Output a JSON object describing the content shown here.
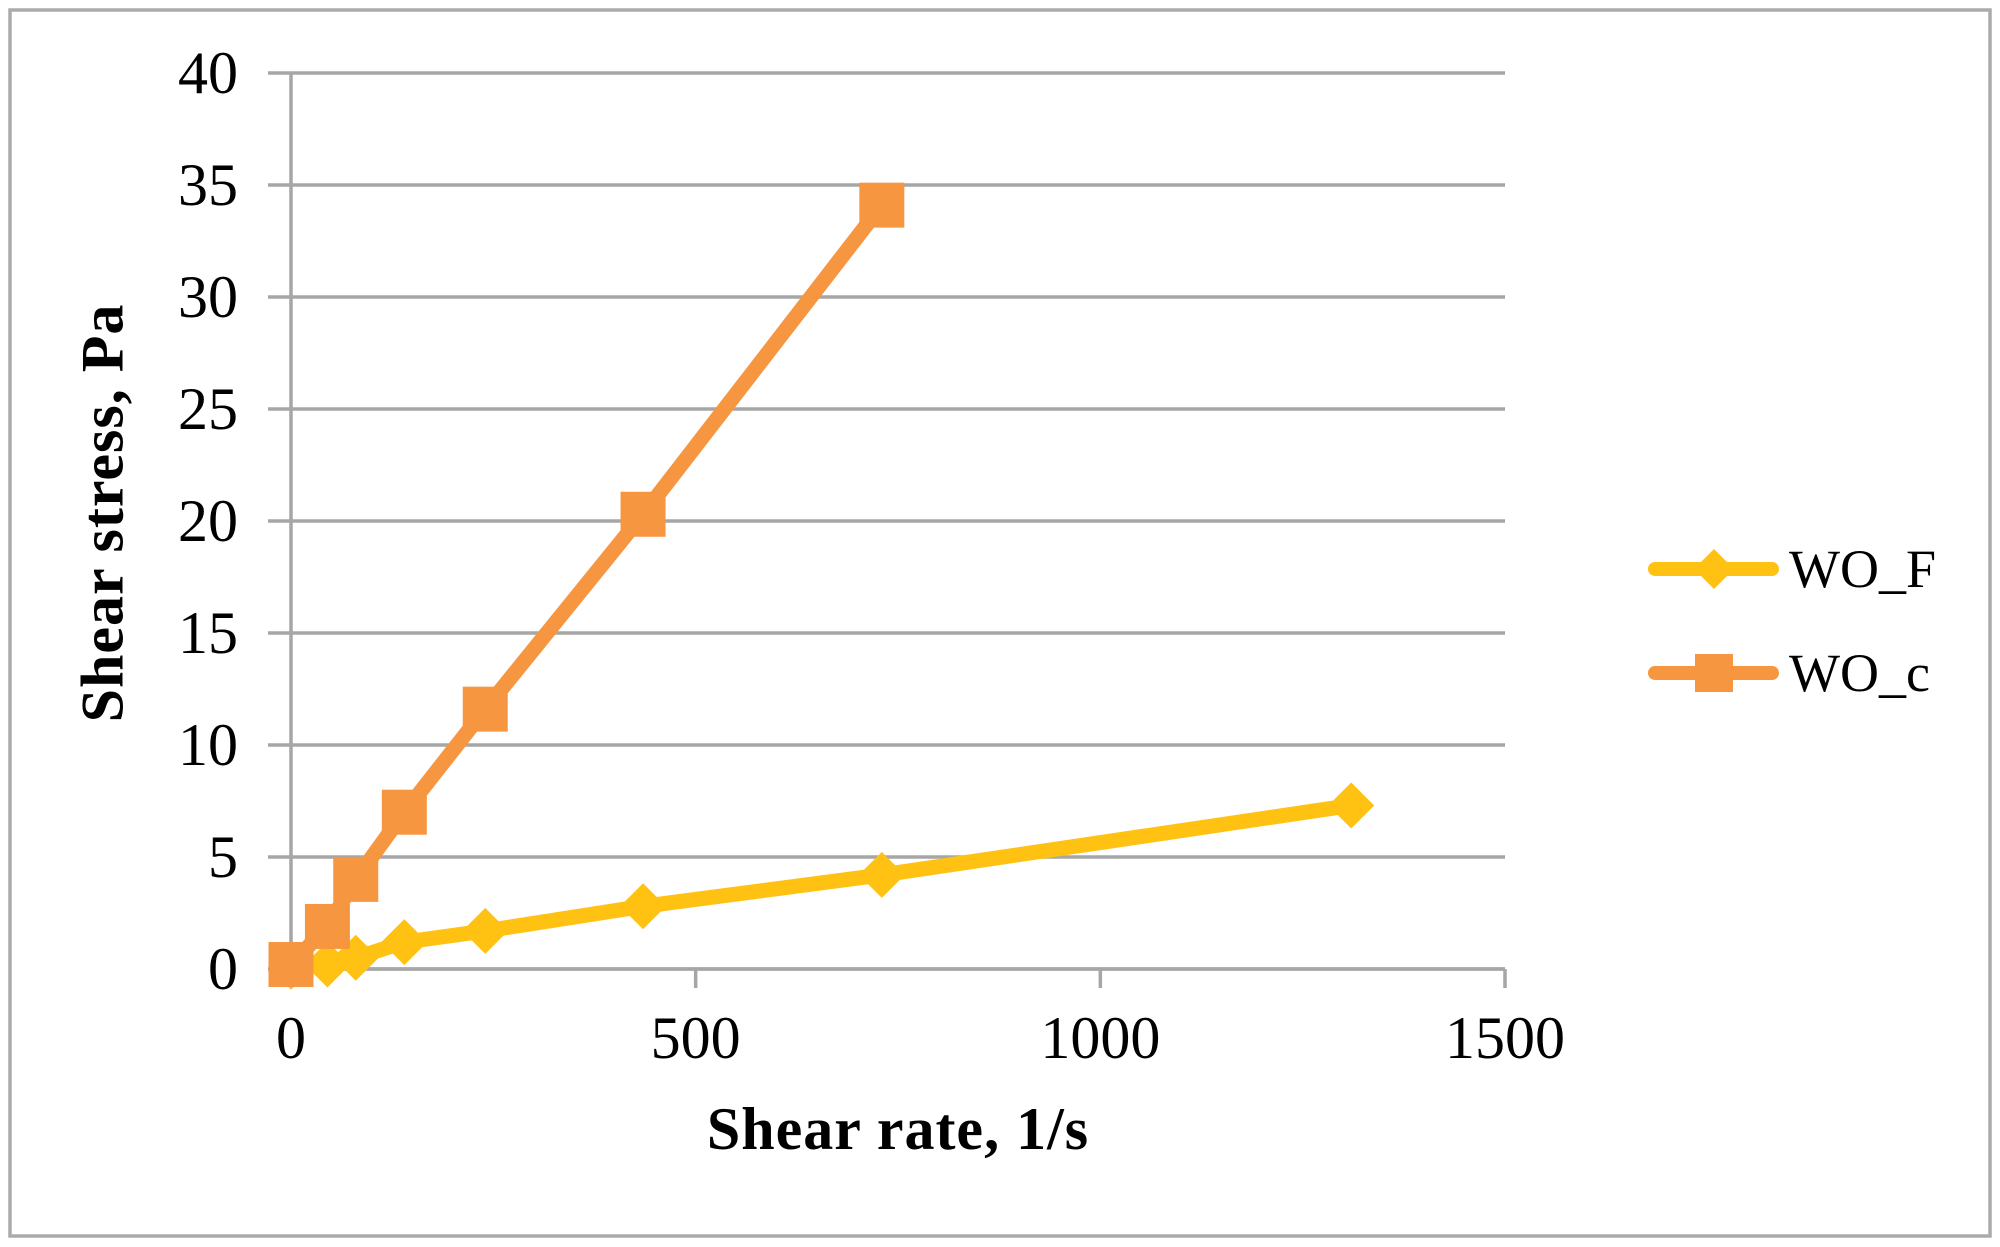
{
  "chart_data": {
    "type": "line",
    "title": "",
    "xlabel": "Shear rate, 1/s",
    "ylabel": "Shear stress, Pa",
    "xlim": [
      0,
      1500
    ],
    "ylim": [
      0,
      40
    ],
    "x_ticks": [
      0,
      500,
      1000,
      1500
    ],
    "y_ticks": [
      0,
      5,
      10,
      15,
      20,
      25,
      30,
      35,
      40
    ],
    "grid": "horizontal gridlines on",
    "legend_position": "right",
    "series": [
      {
        "name": "WO_F",
        "marker": "diamond",
        "color": "#FFC213",
        "points": [
          [
            0,
            0.1
          ],
          [
            45,
            0.2
          ],
          [
            80,
            0.5
          ],
          [
            140,
            1.2
          ],
          [
            240,
            1.7
          ],
          [
            435,
            2.8
          ],
          [
            730,
            4.2
          ],
          [
            1310,
            7.3
          ]
        ]
      },
      {
        "name": "WO_c",
        "marker": "square",
        "color": "#F79640",
        "points": [
          [
            0,
            0.2
          ],
          [
            45,
            1.9
          ],
          [
            80,
            4.0
          ],
          [
            140,
            7.0
          ],
          [
            240,
            11.6
          ],
          [
            435,
            20.3
          ],
          [
            730,
            34.1
          ]
        ]
      }
    ],
    "styles": {
      "grid_color": "#A6A6A6",
      "axis_color": "#A6A6A6",
      "text_color": "#000000",
      "background": "#FFFFFF",
      "figure_border_color": "#ABABAB"
    }
  }
}
